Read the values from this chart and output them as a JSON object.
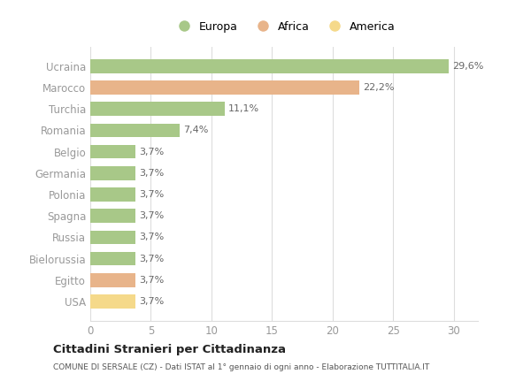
{
  "categories": [
    "USA",
    "Egitto",
    "Bielorussia",
    "Russia",
    "Spagna",
    "Polonia",
    "Germania",
    "Belgio",
    "Romania",
    "Turchia",
    "Marocco",
    "Ucraina"
  ],
  "values": [
    3.7,
    3.7,
    3.7,
    3.7,
    3.7,
    3.7,
    3.7,
    3.7,
    7.4,
    11.1,
    22.2,
    29.6
  ],
  "labels": [
    "3,7%",
    "3,7%",
    "3,7%",
    "3,7%",
    "3,7%",
    "3,7%",
    "3,7%",
    "3,7%",
    "7,4%",
    "11,1%",
    "22,2%",
    "29,6%"
  ],
  "colors": [
    "#f5d98a",
    "#e8b48a",
    "#a8c888",
    "#a8c888",
    "#a8c888",
    "#a8c888",
    "#a8c888",
    "#a8c888",
    "#a8c888",
    "#a8c888",
    "#e8b48a",
    "#a8c888"
  ],
  "legend_labels": [
    "Europa",
    "Africa",
    "America"
  ],
  "legend_colors": [
    "#a8c888",
    "#e8b48a",
    "#f5d98a"
  ],
  "title": "Cittadini Stranieri per Cittadinanza",
  "subtitle": "COMUNE DI SERSALE (CZ) - Dati ISTAT al 1° gennaio di ogni anno - Elaborazione TUTTITALIA.IT",
  "xlim": [
    0,
    32
  ],
  "xticks": [
    0,
    5,
    10,
    15,
    20,
    25,
    30
  ],
  "background_color": "#ffffff",
  "grid_color": "#dddddd",
  "label_color": "#666666",
  "tick_color": "#999999"
}
